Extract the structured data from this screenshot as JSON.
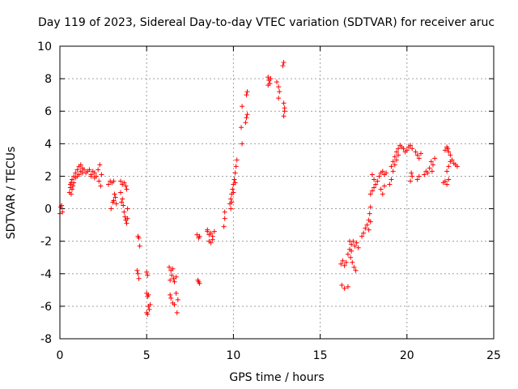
{
  "chart_data": {
    "type": "scatter",
    "title": "Day 119 of 2023, Sidereal Day-to-day VTEC variation (SDTVAR) for receiver aruc",
    "xlabel": "GPS time / hours",
    "ylabel": "SDTVAR / TECUs",
    "xlim": [
      0,
      25
    ],
    "ylim": [
      -8,
      10
    ],
    "xticks": [
      0,
      5,
      10,
      15,
      20,
      25
    ],
    "yticks": [
      -8,
      -6,
      -4,
      -2,
      0,
      2,
      4,
      6,
      8,
      10
    ],
    "xtick_labels": [
      "0",
      "5",
      "10",
      "15",
      "20",
      "25"
    ],
    "ytick_labels": [
      "-8",
      "-6",
      "-4",
      "-2",
      "0",
      "2",
      "4",
      "6",
      "8",
      "10"
    ],
    "grid": true,
    "marker": "+",
    "series": [
      {
        "name": "SDTVAR",
        "color": "#ff0000",
        "points": [
          [
            0.0,
            -0.3
          ],
          [
            0.05,
            0.1
          ],
          [
            0.1,
            0.2
          ],
          [
            0.15,
            -0.2
          ],
          [
            0.55,
            1.0
          ],
          [
            0.6,
            1.3
          ],
          [
            0.65,
            1.6
          ],
          [
            0.7,
            1.8
          ],
          [
            0.8,
            2.0
          ],
          [
            0.9,
            2.2
          ],
          [
            1.0,
            2.4
          ],
          [
            1.1,
            2.6
          ],
          [
            1.2,
            2.7
          ],
          [
            1.3,
            2.5
          ],
          [
            1.4,
            2.4
          ],
          [
            0.6,
            1.5
          ],
          [
            0.7,
            1.2
          ],
          [
            0.8,
            1.6
          ],
          [
            0.9,
            1.9
          ],
          [
            1.0,
            2.0
          ],
          [
            1.1,
            2.1
          ],
          [
            1.2,
            2.3
          ],
          [
            1.3,
            2.2
          ],
          [
            0.65,
            0.9
          ],
          [
            0.75,
            1.4
          ],
          [
            1.5,
            2.2
          ],
          [
            1.6,
            2.3
          ],
          [
            1.7,
            2.4
          ],
          [
            1.8,
            2.1
          ],
          [
            1.9,
            2.3
          ],
          [
            2.0,
            2.2
          ],
          [
            2.1,
            2.0
          ],
          [
            2.2,
            2.4
          ],
          [
            2.3,
            2.7
          ],
          [
            2.4,
            2.1
          ],
          [
            2.35,
            1.4
          ],
          [
            2.25,
            1.7
          ],
          [
            2.0,
            1.9
          ],
          [
            1.8,
            2.0
          ],
          [
            2.8,
            1.5
          ],
          [
            2.9,
            1.7
          ],
          [
            3.0,
            1.6
          ],
          [
            3.1,
            1.7
          ],
          [
            2.95,
            0.0
          ],
          [
            3.1,
            0.5
          ],
          [
            3.2,
            0.7
          ],
          [
            3.25,
            0.3
          ],
          [
            3.15,
            0.9
          ],
          [
            3.05,
            0.4
          ],
          [
            3.5,
            1.7
          ],
          [
            3.6,
            1.5
          ],
          [
            3.7,
            1.6
          ],
          [
            3.8,
            1.4
          ],
          [
            3.85,
            1.2
          ],
          [
            3.5,
            1.0
          ],
          [
            3.6,
            0.6
          ],
          [
            3.65,
            0.2
          ],
          [
            3.7,
            -0.2
          ],
          [
            3.75,
            -0.5
          ],
          [
            3.8,
            -0.7
          ],
          [
            3.85,
            -0.9
          ],
          [
            3.9,
            -0.6
          ],
          [
            3.55,
            0.4
          ],
          [
            3.9,
            0.0
          ],
          [
            4.5,
            -1.7
          ],
          [
            4.55,
            -1.8
          ],
          [
            4.6,
            -2.3
          ],
          [
            4.45,
            -3.8
          ],
          [
            4.5,
            -4.0
          ],
          [
            4.55,
            -4.3
          ],
          [
            5.0,
            -3.9
          ],
          [
            5.05,
            -4.1
          ],
          [
            5.0,
            -5.2
          ],
          [
            5.05,
            -5.4
          ],
          [
            5.1,
            -6.0
          ],
          [
            5.15,
            -6.2
          ],
          [
            5.0,
            -6.4
          ],
          [
            5.05,
            -6.5
          ],
          [
            5.2,
            -5.9
          ],
          [
            5.1,
            -5.3
          ],
          [
            6.3,
            -3.6
          ],
          [
            6.4,
            -3.8
          ],
          [
            6.5,
            -3.7
          ],
          [
            6.45,
            -4.1
          ],
          [
            6.55,
            -4.3
          ],
          [
            6.6,
            -4.5
          ],
          [
            6.35,
            -4.4
          ],
          [
            6.7,
            -4.2
          ],
          [
            6.35,
            -5.3
          ],
          [
            6.4,
            -5.5
          ],
          [
            6.5,
            -5.8
          ],
          [
            6.6,
            -5.9
          ],
          [
            6.75,
            -6.4
          ],
          [
            6.8,
            -5.6
          ],
          [
            6.7,
            -5.2
          ],
          [
            7.9,
            -1.6
          ],
          [
            8.0,
            -1.8
          ],
          [
            8.05,
            -1.7
          ],
          [
            7.95,
            -4.4
          ],
          [
            8.05,
            -4.6
          ],
          [
            8.0,
            -4.5
          ],
          [
            8.5,
            -1.4
          ],
          [
            8.6,
            -1.6
          ],
          [
            8.7,
            -1.5
          ],
          [
            8.8,
            -1.7
          ],
          [
            8.9,
            -1.4
          ],
          [
            8.6,
            -2.0
          ],
          [
            8.7,
            -2.1
          ],
          [
            8.8,
            -1.9
          ],
          [
            8.5,
            -1.3
          ],
          [
            9.5,
            -0.6
          ],
          [
            9.45,
            -1.1
          ],
          [
            9.5,
            -0.2
          ],
          [
            9.8,
            0.3
          ],
          [
            9.85,
            0.6
          ],
          [
            9.9,
            0.9
          ],
          [
            9.95,
            1.2
          ],
          [
            10.0,
            1.5
          ],
          [
            10.05,
            1.8
          ],
          [
            10.1,
            2.2
          ],
          [
            10.15,
            2.6
          ],
          [
            10.2,
            3.0
          ],
          [
            9.85,
            0.0
          ],
          [
            9.9,
            0.4
          ],
          [
            10.0,
            1.0
          ],
          [
            10.1,
            1.6
          ],
          [
            10.5,
            4.0
          ],
          [
            10.45,
            5.0
          ],
          [
            10.5,
            6.3
          ],
          [
            10.7,
            5.3
          ],
          [
            10.75,
            5.6
          ],
          [
            10.8,
            5.8
          ],
          [
            10.75,
            7.0
          ],
          [
            10.8,
            7.2
          ],
          [
            12.0,
            8.1
          ],
          [
            12.05,
            7.9
          ],
          [
            12.1,
            7.7
          ],
          [
            12.15,
            8.0
          ],
          [
            12.0,
            7.6
          ],
          [
            12.5,
            7.8
          ],
          [
            12.6,
            7.5
          ],
          [
            12.6,
            6.8
          ],
          [
            12.65,
            7.2
          ],
          [
            12.85,
            8.8
          ],
          [
            12.9,
            9.0
          ],
          [
            12.9,
            6.5
          ],
          [
            12.95,
            6.0
          ],
          [
            12.9,
            5.7
          ],
          [
            12.95,
            6.2
          ],
          [
            16.2,
            -3.4
          ],
          [
            16.3,
            -3.2
          ],
          [
            16.4,
            -3.5
          ],
          [
            16.5,
            -3.3
          ],
          [
            16.25,
            -4.7
          ],
          [
            16.4,
            -4.9
          ],
          [
            16.6,
            -4.8
          ],
          [
            16.6,
            -2.8
          ],
          [
            16.7,
            -2.5
          ],
          [
            16.8,
            -2.2
          ],
          [
            16.9,
            -2.0
          ],
          [
            17.0,
            -2.3
          ],
          [
            17.1,
            -2.1
          ],
          [
            17.2,
            -2.4
          ],
          [
            16.75,
            -3.0
          ],
          [
            16.85,
            -3.3
          ],
          [
            16.95,
            -3.6
          ],
          [
            17.05,
            -3.8
          ],
          [
            16.7,
            -2.0
          ],
          [
            16.8,
            -2.6
          ],
          [
            17.4,
            -1.7
          ],
          [
            17.5,
            -1.5
          ],
          [
            17.6,
            -1.2
          ],
          [
            17.7,
            -1.0
          ],
          [
            17.8,
            -0.7
          ],
          [
            17.85,
            -0.3
          ],
          [
            17.9,
            0.1
          ],
          [
            17.8,
            -1.3
          ],
          [
            17.9,
            -0.8
          ],
          [
            17.9,
            0.9
          ],
          [
            18.0,
            1.1
          ],
          [
            18.1,
            1.3
          ],
          [
            18.0,
            2.1
          ],
          [
            18.1,
            1.8
          ],
          [
            18.2,
            1.5
          ],
          [
            18.3,
            1.7
          ],
          [
            18.4,
            2.0
          ],
          [
            18.5,
            2.2
          ],
          [
            18.6,
            2.3
          ],
          [
            18.7,
            2.1
          ],
          [
            18.5,
            1.2
          ],
          [
            18.6,
            0.9
          ],
          [
            18.7,
            1.4
          ],
          [
            18.8,
            2.2
          ],
          [
            19.1,
            2.6
          ],
          [
            19.2,
            2.9
          ],
          [
            19.3,
            3.2
          ],
          [
            19.4,
            3.5
          ],
          [
            19.5,
            3.7
          ],
          [
            19.6,
            3.9
          ],
          [
            19.7,
            3.8
          ],
          [
            19.8,
            3.7
          ],
          [
            19.9,
            3.5
          ],
          [
            19.1,
            1.8
          ],
          [
            19.2,
            2.3
          ],
          [
            19.3,
            2.7
          ],
          [
            19.4,
            3.0
          ],
          [
            19.5,
            3.3
          ],
          [
            19.0,
            1.5
          ],
          [
            20.0,
            3.6
          ],
          [
            20.1,
            3.8
          ],
          [
            20.2,
            3.9
          ],
          [
            20.3,
            3.7
          ],
          [
            20.5,
            3.5
          ],
          [
            20.6,
            3.3
          ],
          [
            20.7,
            3.1
          ],
          [
            20.8,
            3.4
          ],
          [
            20.2,
            1.7
          ],
          [
            20.3,
            2.0
          ],
          [
            20.25,
            2.2
          ],
          [
            20.6,
            1.8
          ],
          [
            20.7,
            2.0
          ],
          [
            21.0,
            2.1
          ],
          [
            21.1,
            2.3
          ],
          [
            21.2,
            2.2
          ],
          [
            21.3,
            2.5
          ],
          [
            21.4,
            2.9
          ],
          [
            21.5,
            2.7
          ],
          [
            21.6,
            3.1
          ],
          [
            21.45,
            2.3
          ],
          [
            22.1,
            1.6
          ],
          [
            22.2,
            1.7
          ],
          [
            22.3,
            1.5
          ],
          [
            22.4,
            1.8
          ],
          [
            22.2,
            3.6
          ],
          [
            22.3,
            3.8
          ],
          [
            22.35,
            3.7
          ],
          [
            22.4,
            3.5
          ],
          [
            22.5,
            3.3
          ],
          [
            22.6,
            3.0
          ],
          [
            22.7,
            2.8
          ],
          [
            22.8,
            2.7
          ],
          [
            22.9,
            2.6
          ],
          [
            22.3,
            2.3
          ],
          [
            22.4,
            2.6
          ],
          [
            22.5,
            2.9
          ]
        ]
      }
    ]
  }
}
